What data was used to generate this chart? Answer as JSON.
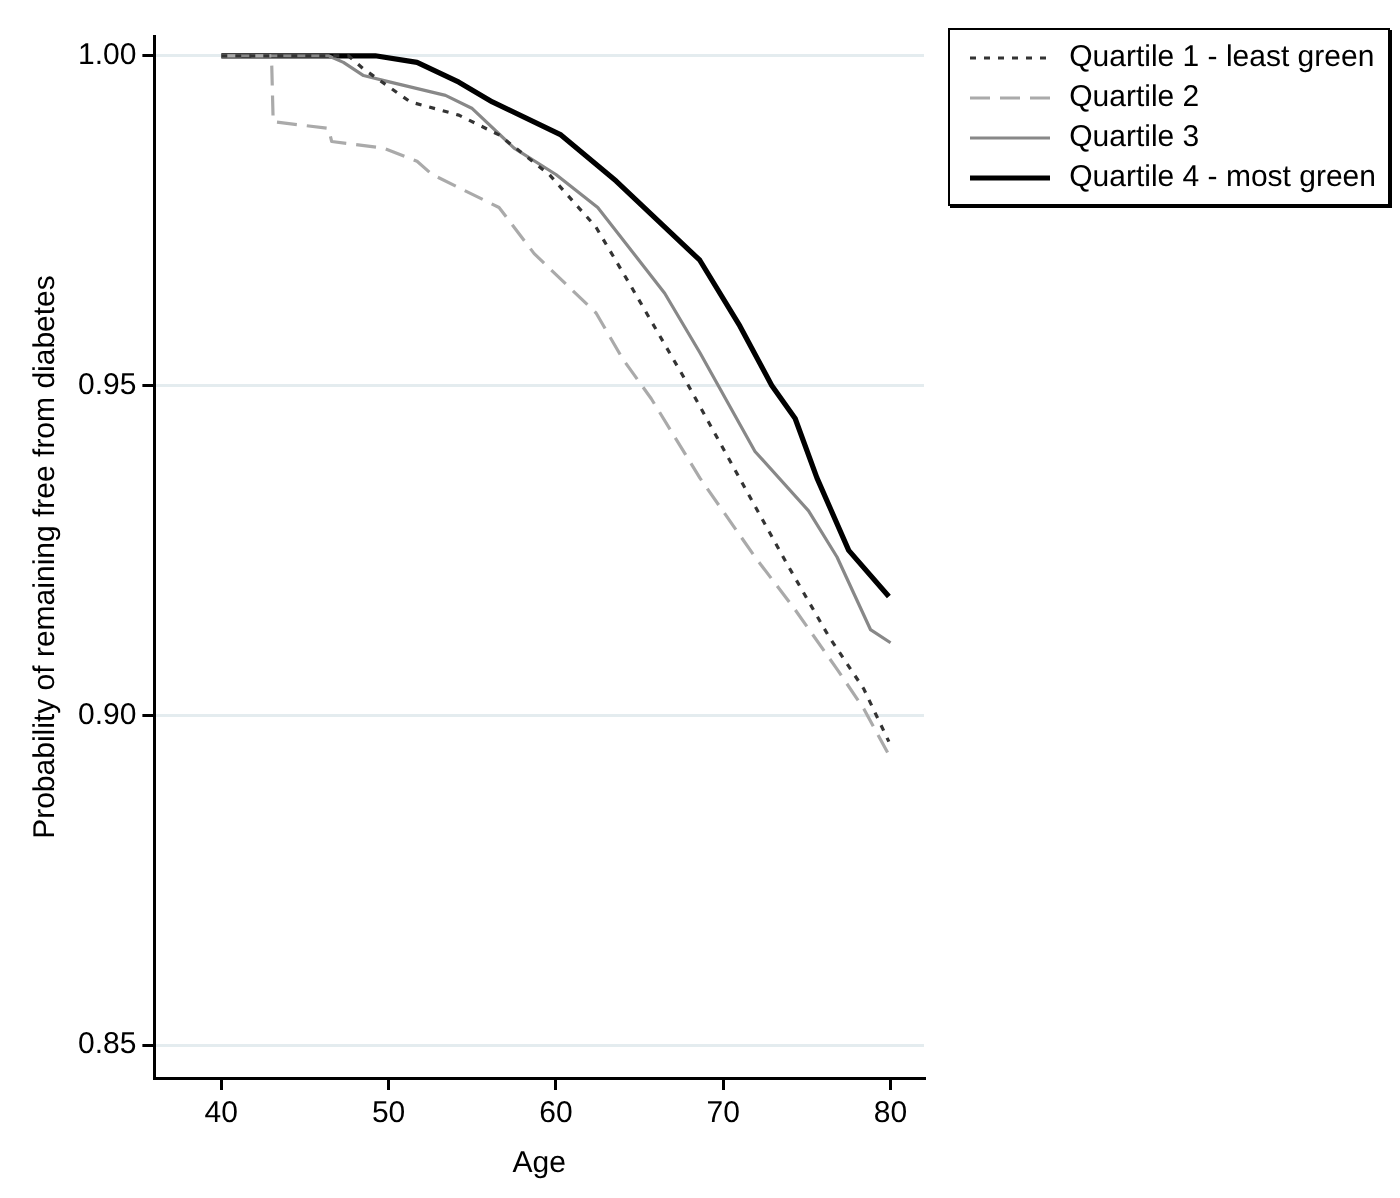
{
  "chart_data": {
    "type": "line",
    "xlabel": "Age",
    "ylabel": "Probability of remaining free from diabetes",
    "xlim": [
      36,
      82
    ],
    "xticks": [
      40,
      50,
      60,
      70,
      80
    ],
    "ylim": [
      0.845,
      1.003
    ],
    "yticks": [
      {
        "value": 0.85,
        "label": "0.85"
      },
      {
        "value": 0.9,
        "label": "0.90"
      },
      {
        "value": 0.95,
        "label": "0.95"
      },
      {
        "value": 1.0,
        "label": "1.00"
      }
    ],
    "grid": "y",
    "legend": "top right",
    "marker": "none",
    "series": [
      {
        "name": "Quartile 1 - least green",
        "color": "#333333",
        "line_style": "dotted",
        "x": [
          40,
          47.6,
          48.5,
          51.3,
          54.2,
          56.6,
          59.6,
          62.4,
          64.5,
          67.7,
          71.4,
          73.8,
          76.3,
          78.4,
          79.9
        ],
        "values": [
          1.0,
          1.0,
          0.998,
          0.993,
          0.991,
          0.988,
          0.982,
          0.974,
          0.965,
          0.951,
          0.934,
          0.923,
          0.912,
          0.904,
          0.896
        ]
      },
      {
        "name": "Quartile 2",
        "color": "#aaaaaa",
        "line_style": "dashed",
        "x": [
          40,
          43.0,
          43.1,
          46.4,
          46.6,
          49.7,
          51.7,
          52.6,
          56.6,
          58.7,
          62.4,
          64.0,
          65.7,
          68.6,
          71.9,
          74.3,
          76.8,
          78.4,
          79.9
        ],
        "values": [
          1.0,
          1.0,
          0.99,
          0.989,
          0.987,
          0.986,
          0.984,
          0.982,
          0.977,
          0.97,
          0.961,
          0.954,
          0.948,
          0.936,
          0.924,
          0.916,
          0.907,
          0.901,
          0.894
        ]
      },
      {
        "name": "Quartile 3",
        "color": "#888888",
        "line_style": "solid",
        "x": [
          40,
          46.4,
          47.3,
          48.5,
          50.1,
          53.4,
          55.0,
          57.5,
          60.0,
          62.5,
          66.5,
          68.6,
          71.9,
          75.1,
          76.8,
          78.8,
          80.0
        ],
        "values": [
          1.0,
          1.0,
          0.999,
          0.997,
          0.996,
          0.994,
          0.992,
          0.986,
          0.982,
          0.977,
          0.964,
          0.955,
          0.94,
          0.931,
          0.924,
          0.913,
          0.911
        ]
      },
      {
        "name": "Quartile 4 - most green",
        "color": "#000000",
        "line_style": "solid",
        "x": [
          40,
          49.2,
          51.7,
          54.2,
          56.2,
          60.3,
          63.6,
          68.6,
          71.0,
          72.9,
          74.3,
          75.6,
          77.5,
          79.9
        ],
        "values": [
          1.0,
          1.0,
          0.999,
          0.996,
          0.993,
          0.988,
          0.981,
          0.969,
          0.959,
          0.95,
          0.945,
          0.936,
          0.925,
          0.918
        ]
      }
    ]
  }
}
